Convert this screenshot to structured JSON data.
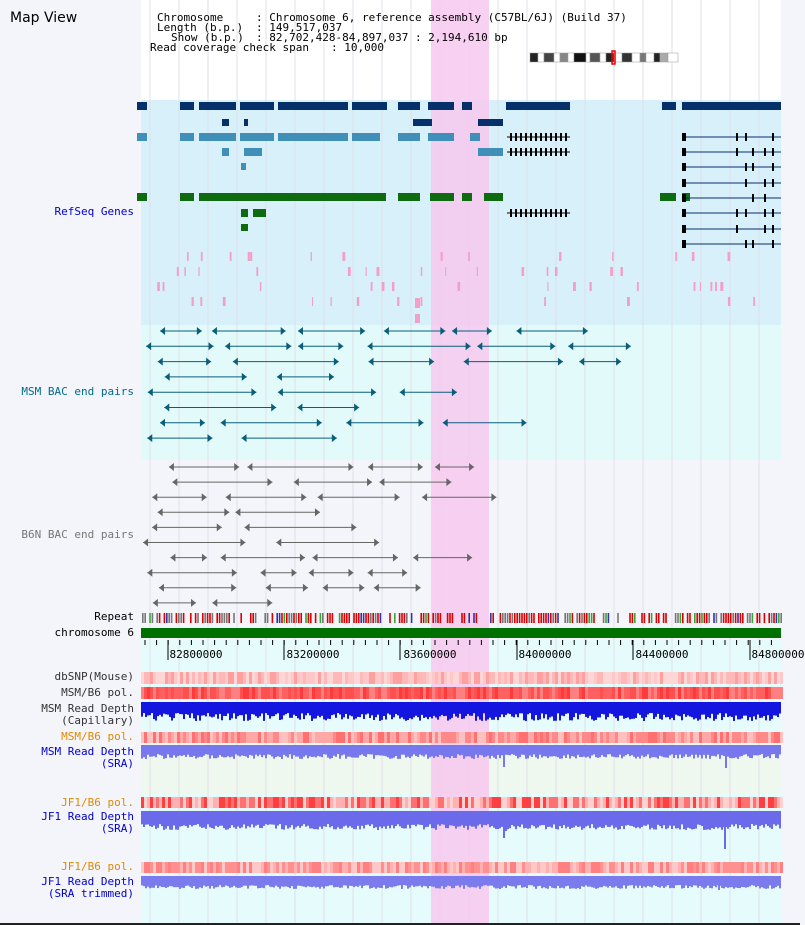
{
  "title": "Map View",
  "header": {
    "chromosome_key": "Chromosome",
    "chromosome_val": ": Chromosome 6, reference assembly (C57BL/6J) (Build 37)",
    "length_key": "Length (b.p.)",
    "length_val": ": 149,517,037",
    "show_key": "Show (b.p.)",
    "show_val": ": 82,702,428-84,897,037 : 2,194,610 bp",
    "coverage_key": "Read coverage check span",
    "coverage_val": ": 10,000"
  },
  "tracks": {
    "refseq": "RefSeq Genes",
    "msm_bac": "MSM BAC end pairs",
    "b6n_bac": "B6N BAC end pairs",
    "repeat": "Repeat",
    "chromosome": "chromosome 6",
    "dbsnp": "dbSNP(Mouse)",
    "msm_b6_pol": "MSM/B6 pol.",
    "msm_depth_cap_1": "MSM Read Depth",
    "msm_depth_cap_2": "(Capillary)",
    "msm_b6_pol2": "MSM/B6 pol.",
    "msm_depth_sra_1": "MSM Read Depth",
    "msm_depth_sra_2": "(SRA)",
    "jf1_b6_pol": "JF1/B6 pol.",
    "jf1_depth_sra_1": "JF1 Read Depth",
    "jf1_depth_sra_2": "(SRA)",
    "jf1_b6_pol2": "JF1/B6 pol.",
    "jf1_depth_trim_1": "JF1 Read Depth",
    "jf1_depth_trim_2": "(SRA trimmed)"
  },
  "axis": {
    "ticks": [
      "82800000",
      "83200000",
      "83600000",
      "84000000",
      "84400000",
      "84800000"
    ]
  },
  "colors": {
    "refseq_dark": "#06306a",
    "refseq_mid": "#3f8fb8",
    "refseq_green": "#0f6b0f",
    "bac_msm": "#0a5e7a",
    "bac_b6n": "#666666",
    "highlight": "#f7c8ef",
    "chrom_bar": "#007000"
  }
}
